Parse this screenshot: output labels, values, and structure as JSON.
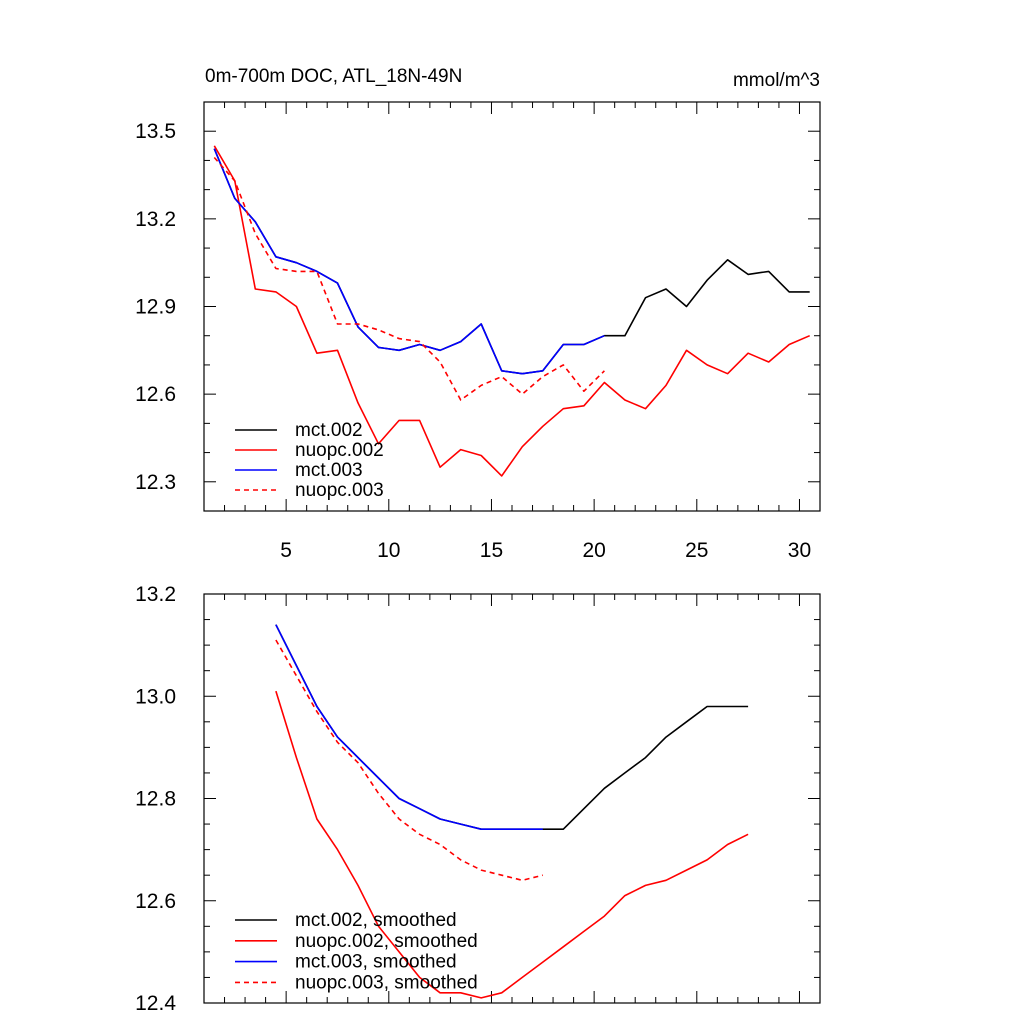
{
  "chart_data": [
    {
      "type": "line",
      "title": "0m-700m DOC, ATL_18N-49N",
      "units": "mmol/m^3",
      "xlabel": "",
      "ylabel": "",
      "xlim": [
        1,
        31
      ],
      "ylim": [
        12.2,
        13.6
      ],
      "xticks": [
        5,
        10,
        15,
        20,
        25,
        30
      ],
      "yticks": [
        12.3,
        12.6,
        12.9,
        13.2,
        13.5
      ],
      "ytick_labels": [
        "12.3",
        "12.6",
        "12.9",
        "13.2",
        "13.5"
      ],
      "legend_position": "bottom-left",
      "series": [
        {
          "name": "mct.002",
          "color": "#000000",
          "dash": "solid",
          "x": [
            1.5,
            2.5,
            3.5,
            4.5,
            5.5,
            6.5,
            7.5,
            8.5,
            9.5,
            10.5,
            11.5,
            12.5,
            13.5,
            14.5,
            15.5,
            16.5,
            17.5,
            18.5,
            19.5,
            20.5,
            21.5,
            22.5,
            23.5,
            24.5,
            25.5,
            26.5,
            27.5,
            28.5,
            29.5,
            30.5
          ],
          "values": [
            13.44,
            13.27,
            13.19,
            13.07,
            13.05,
            13.02,
            12.98,
            12.83,
            12.76,
            12.75,
            12.77,
            12.75,
            12.78,
            12.84,
            12.68,
            12.67,
            12.68,
            12.77,
            12.77,
            12.8,
            12.8,
            12.93,
            12.96,
            12.9,
            12.99,
            13.06,
            13.01,
            13.02,
            12.95,
            12.95
          ]
        },
        {
          "name": "nuopc.002",
          "color": "#ff0000",
          "dash": "solid",
          "x": [
            1.5,
            2.5,
            3.5,
            4.5,
            5.5,
            6.5,
            7.5,
            8.5,
            9.5,
            10.5,
            11.5,
            12.5,
            13.5,
            14.5,
            15.5,
            16.5,
            17.5,
            18.5,
            19.5,
            20.5,
            21.5,
            22.5,
            23.5,
            24.5,
            25.5,
            26.5,
            27.5,
            28.5,
            29.5,
            30.5
          ],
          "values": [
            13.45,
            13.33,
            12.96,
            12.95,
            12.9,
            12.74,
            12.75,
            12.57,
            12.43,
            12.51,
            12.51,
            12.35,
            12.41,
            12.39,
            12.32,
            12.42,
            12.49,
            12.55,
            12.56,
            12.64,
            12.58,
            12.55,
            12.63,
            12.75,
            12.7,
            12.67,
            12.74,
            12.71,
            12.77,
            12.8
          ]
        },
        {
          "name": "mct.003",
          "color": "#0000ff",
          "dash": "solid",
          "x": [
            1.5,
            2.5,
            3.5,
            4.5,
            5.5,
            6.5,
            7.5,
            8.5,
            9.5,
            10.5,
            11.5,
            12.5,
            13.5,
            14.5,
            15.5,
            16.5,
            17.5,
            18.5,
            19.5,
            20.5
          ],
          "values": [
            13.44,
            13.27,
            13.19,
            13.07,
            13.05,
            13.02,
            12.98,
            12.83,
            12.76,
            12.75,
            12.77,
            12.75,
            12.78,
            12.84,
            12.68,
            12.67,
            12.68,
            12.77,
            12.77,
            12.8
          ]
        },
        {
          "name": "nuopc.003",
          "color": "#ff0000",
          "dash": "dashed",
          "x": [
            1.5,
            2.5,
            3.5,
            4.5,
            5.5,
            6.5,
            7.5,
            8.5,
            9.5,
            10.5,
            11.5,
            12.5,
            13.5,
            14.5,
            15.5,
            16.5,
            17.5,
            18.5,
            19.5,
            20.5
          ],
          "values": [
            13.41,
            13.33,
            13.15,
            13.03,
            13.02,
            13.02,
            12.84,
            12.84,
            12.82,
            12.79,
            12.78,
            12.71,
            12.58,
            12.63,
            12.66,
            12.6,
            12.66,
            12.7,
            12.61,
            12.68
          ]
        }
      ]
    },
    {
      "type": "line",
      "title": "",
      "xlabel": "",
      "ylabel": "",
      "xlim": [
        1,
        31
      ],
      "ylim": [
        12.4,
        13.2
      ],
      "xticks": [
        5,
        10,
        15,
        20,
        25,
        30
      ],
      "yticks": [
        12.4,
        12.6,
        12.8,
        13.0,
        13.2
      ],
      "ytick_labels": [
        "12.4",
        "12.6",
        "12.8",
        "13.0",
        "13.2"
      ],
      "legend_position": "bottom-left",
      "series": [
        {
          "name": "mct.002, smoothed",
          "color": "#000000",
          "dash": "solid",
          "x": [
            4.5,
            5.5,
            6.5,
            7.5,
            8.5,
            9.5,
            10.5,
            11.5,
            12.5,
            13.5,
            14.5,
            15.5,
            16.5,
            17.5,
            18.5,
            19.5,
            20.5,
            21.5,
            22.5,
            23.5,
            24.5,
            25.5,
            26.5,
            27.5
          ],
          "values": [
            13.14,
            13.06,
            12.98,
            12.92,
            12.88,
            12.84,
            12.8,
            12.78,
            12.76,
            12.75,
            12.74,
            12.74,
            12.74,
            12.74,
            12.74,
            12.78,
            12.82,
            12.85,
            12.88,
            12.92,
            12.95,
            12.98,
            12.98,
            12.98
          ]
        },
        {
          "name": "nuopc.002, smoothed",
          "color": "#ff0000",
          "dash": "solid",
          "x": [
            4.5,
            5.5,
            6.5,
            7.5,
            8.5,
            9.5,
            10.5,
            11.5,
            12.5,
            13.5,
            14.5,
            15.5,
            16.5,
            17.5,
            18.5,
            19.5,
            20.5,
            21.5,
            22.5,
            23.5,
            24.5,
            25.5,
            26.5,
            27.5
          ],
          "values": [
            13.01,
            12.88,
            12.76,
            12.7,
            12.63,
            12.55,
            12.5,
            12.45,
            12.42,
            12.42,
            12.41,
            12.42,
            12.45,
            12.48,
            12.51,
            12.54,
            12.57,
            12.61,
            12.63,
            12.64,
            12.66,
            12.68,
            12.71,
            12.73
          ]
        },
        {
          "name": "mct.003, smoothed",
          "color": "#0000ff",
          "dash": "solid",
          "x": [
            4.5,
            5.5,
            6.5,
            7.5,
            8.5,
            9.5,
            10.5,
            11.5,
            12.5,
            13.5,
            14.5,
            15.5,
            16.5,
            17.5
          ],
          "values": [
            13.14,
            13.06,
            12.98,
            12.92,
            12.88,
            12.84,
            12.8,
            12.78,
            12.76,
            12.75,
            12.74,
            12.74,
            12.74,
            12.74
          ]
        },
        {
          "name": "nuopc.003, smoothed",
          "color": "#ff0000",
          "dash": "dashed",
          "x": [
            4.5,
            5.5,
            6.5,
            7.5,
            8.5,
            9.5,
            10.5,
            11.5,
            12.5,
            13.5,
            14.5,
            15.5,
            16.5,
            17.5
          ],
          "values": [
            13.11,
            13.04,
            12.97,
            12.91,
            12.87,
            12.81,
            12.76,
            12.73,
            12.71,
            12.68,
            12.66,
            12.65,
            12.64,
            12.65
          ]
        }
      ]
    }
  ]
}
